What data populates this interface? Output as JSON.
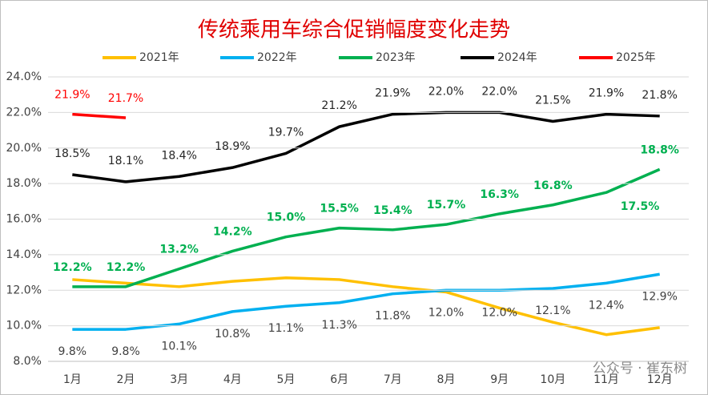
{
  "chart_data": {
    "type": "line",
    "title": "传统乘用车综合促销幅度变化走势",
    "categories": [
      "1月",
      "2月",
      "3月",
      "4月",
      "5月",
      "6月",
      "7月",
      "8月",
      "9月",
      "10月",
      "11月",
      "12月"
    ],
    "series": [
      {
        "name": "2021年",
        "color": "#FFC000",
        "values": [
          12.6,
          12.4,
          12.2,
          12.5,
          12.7,
          12.6,
          12.2,
          11.9,
          11.0,
          10.2,
          9.5,
          9.9
        ]
      },
      {
        "name": "2022年",
        "color": "#00B0F0",
        "values": [
          9.8,
          9.8,
          10.1,
          10.8,
          11.1,
          11.3,
          11.8,
          12.0,
          12.0,
          12.1,
          12.4,
          12.9
        ],
        "value_labels": [
          "9.8%",
          "9.8%",
          "10.1%",
          "10.8%",
          "11.1%",
          "11.3%",
          "11.8%",
          "12.0%",
          "12.0%",
          "12.1%",
          "12.4%",
          "12.9%"
        ]
      },
      {
        "name": "2023年",
        "color": "#00B050",
        "values": [
          12.2,
          12.2,
          13.2,
          14.2,
          15.0,
          15.5,
          15.4,
          15.7,
          16.3,
          16.8,
          17.5,
          18.8
        ],
        "value_labels": [
          "12.2%",
          "12.2%",
          "13.2%",
          "14.2%",
          "15.0%",
          "15.5%",
          "15.4%",
          "15.7%",
          "16.3%",
          "16.8%",
          "17.5%",
          "18.8%"
        ]
      },
      {
        "name": "2024年",
        "color": "#000000",
        "values": [
          18.5,
          18.1,
          18.4,
          18.9,
          19.7,
          21.2,
          21.9,
          22.0,
          22.0,
          21.5,
          21.9,
          21.8
        ],
        "value_labels": [
          "18.5%",
          "18.1%",
          "18.4%",
          "18.9%",
          "19.7%",
          "21.2%",
          "21.9%",
          "22.0%",
          "22.0%",
          "21.5%",
          "21.9%",
          "21.8%"
        ]
      },
      {
        "name": "2025年",
        "color": "#FF0000",
        "values": [
          21.9,
          21.7,
          null,
          null,
          null,
          null,
          null,
          null,
          null,
          null,
          null,
          null
        ],
        "value_labels": [
          "21.9%",
          "21.7%",
          null,
          null,
          null,
          null,
          null,
          null,
          null,
          null,
          null,
          null
        ]
      }
    ],
    "ylim": [
      8,
      24
    ],
    "yticks": [
      {
        "value": 8,
        "label": "8.0%"
      },
      {
        "value": 10,
        "label": "10.0%"
      },
      {
        "value": 12,
        "label": "12.0%"
      },
      {
        "value": 14,
        "label": "14.0%"
      },
      {
        "value": 16,
        "label": "16.0%"
      },
      {
        "value": 18,
        "label": "18.0%"
      },
      {
        "value": 20,
        "label": "20.0%"
      },
      {
        "value": 22,
        "label": "22.0%"
      },
      {
        "value": 24,
        "label": "24.0%"
      }
    ],
    "grid": true,
    "legend": "top",
    "watermark": "公众号 · 崔东树"
  }
}
